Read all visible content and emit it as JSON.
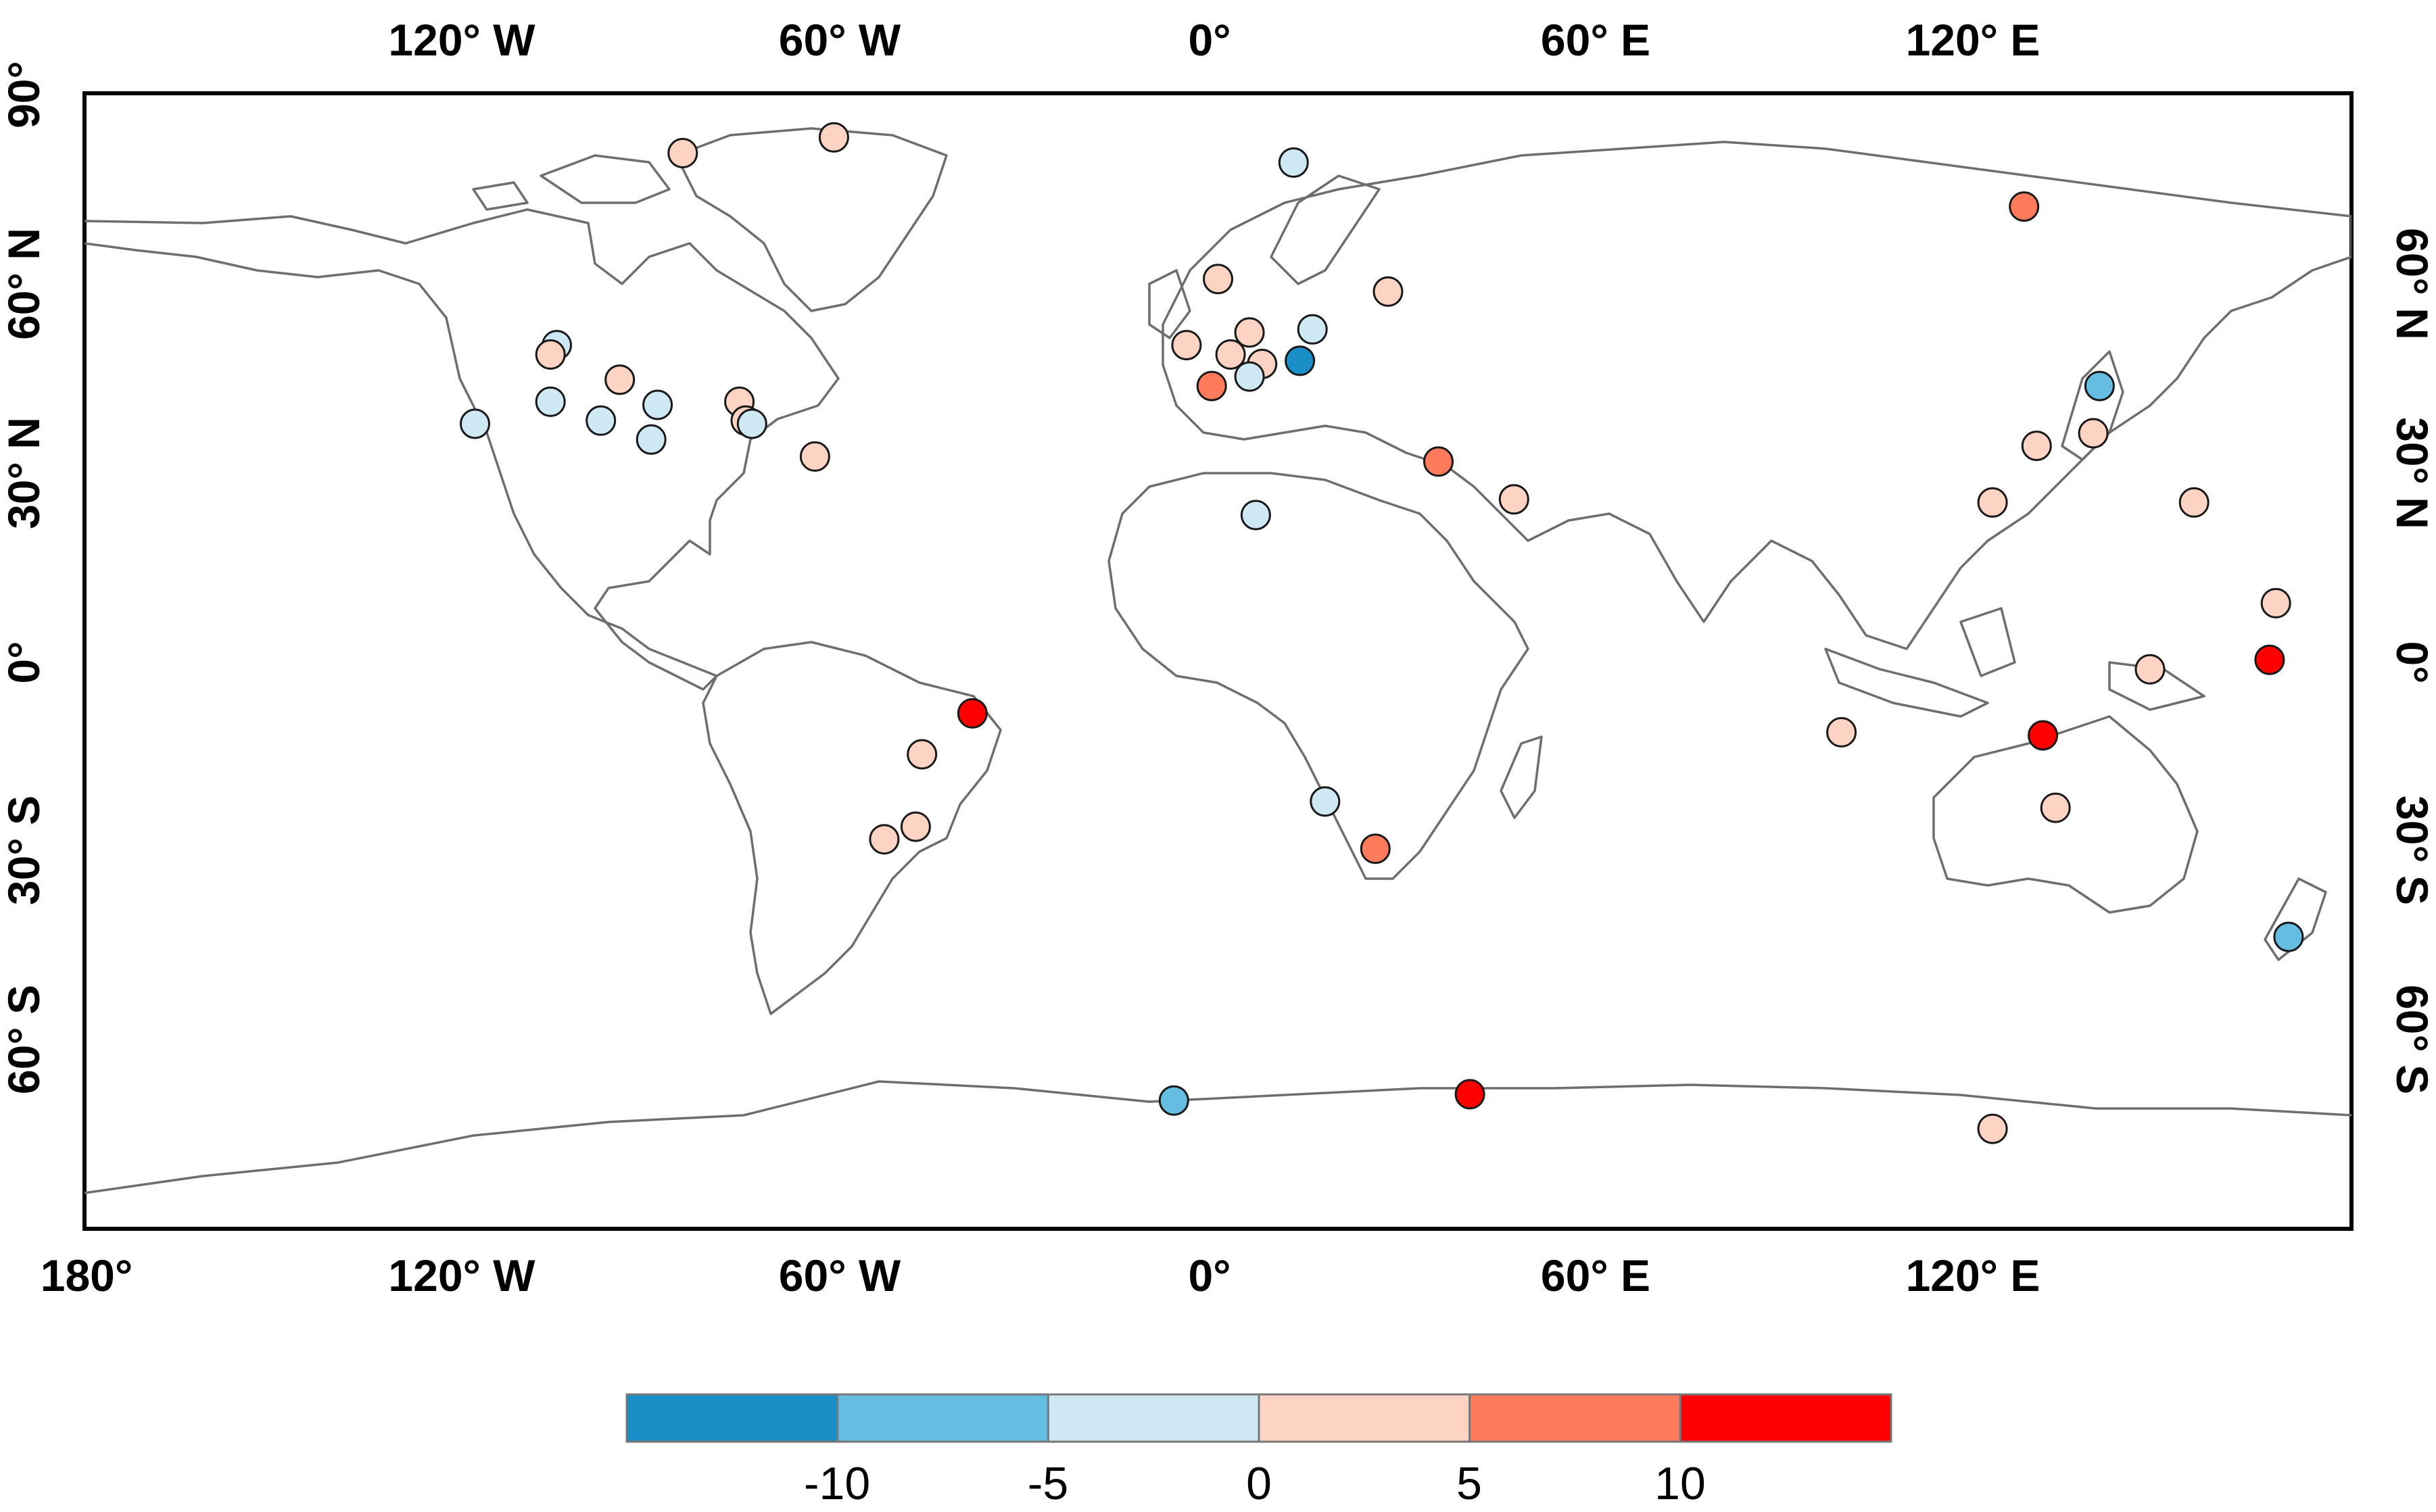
{
  "map": {
    "type": "scatter-map",
    "projection": "plate-carree",
    "lon_range": [
      -180,
      180
    ],
    "lat_range": [
      -90,
      90
    ],
    "x_axis_top_labels": [
      "120° W",
      "60° W",
      "0°",
      "60° E",
      "120° E"
    ],
    "x_axis_bottom_labels": [
      "180°",
      "120° W",
      "60° W",
      "0°",
      "60° E",
      "120° E"
    ],
    "y_axis_labels": [
      "90°",
      "60° N",
      "30° N",
      "0°",
      "30° S",
      "60° S"
    ],
    "y_axis_right_labels": [
      "60° N",
      "30° N",
      "0°",
      "30° S",
      "60° S"
    ]
  },
  "colorbar": {
    "colors": [
      "#1a8fc7",
      "#66bde2",
      "#cfe9f4",
      "#fdd3c3",
      "#ff7b5c",
      "#ff0000"
    ],
    "bounds": [
      -15,
      -10,
      -5,
      0,
      5,
      10,
      15
    ],
    "tick_labels": [
      "-10",
      "-5",
      "0",
      "5",
      "10"
    ]
  },
  "chart_data": {
    "type": "scatter",
    "x_label": "longitude",
    "y_label": "latitude",
    "points": [
      {
        "lon": -85,
        "lat": 80.5,
        "value": 3
      },
      {
        "lon": -61,
        "lat": 83,
        "value": 3
      },
      {
        "lon": 12,
        "lat": 79,
        "value": -2
      },
      {
        "lon": 128,
        "lat": 72,
        "value": 7
      },
      {
        "lon": 0,
        "lat": 60.5,
        "value": 3
      },
      {
        "lon": 27,
        "lat": 58.5,
        "value": 3
      },
      {
        "lon": -5,
        "lat": 50,
        "value": 3
      },
      {
        "lon": 2,
        "lat": 48.5,
        "value": 3
      },
      {
        "lon": 5,
        "lat": 52,
        "value": 3
      },
      {
        "lon": 7,
        "lat": 47,
        "value": 3
      },
      {
        "lon": 15,
        "lat": 52.5,
        "value": -2
      },
      {
        "lon": 13,
        "lat": 47.5,
        "value": -12
      },
      {
        "lon": 5,
        "lat": 45,
        "value": -2
      },
      {
        "lon": -1,
        "lat": 43.5,
        "value": 7
      },
      {
        "lon": 140,
        "lat": 43.5,
        "value": -7
      },
      {
        "lon": -105,
        "lat": 50,
        "value": -2
      },
      {
        "lon": -106,
        "lat": 48.5,
        "value": 3
      },
      {
        "lon": -95,
        "lat": 44.5,
        "value": 3
      },
      {
        "lon": -106,
        "lat": 41,
        "value": -2
      },
      {
        "lon": -118,
        "lat": 37.5,
        "value": -2
      },
      {
        "lon": -98,
        "lat": 38,
        "value": -2
      },
      {
        "lon": -89,
        "lat": 40.5,
        "value": -2
      },
      {
        "lon": -90,
        "lat": 35,
        "value": -2
      },
      {
        "lon": -76,
        "lat": 41,
        "value": 3
      },
      {
        "lon": -75,
        "lat": 38,
        "value": 3
      },
      {
        "lon": -74,
        "lat": 37.5,
        "value": -2
      },
      {
        "lon": -64,
        "lat": 32.3,
        "value": 3
      },
      {
        "lon": 35,
        "lat": 31.5,
        "value": 7
      },
      {
        "lon": 47,
        "lat": 25.5,
        "value": 3
      },
      {
        "lon": 6,
        "lat": 23,
        "value": -2
      },
      {
        "lon": 130,
        "lat": 34,
        "value": 3
      },
      {
        "lon": 139,
        "lat": 36,
        "value": 3
      },
      {
        "lon": 123,
        "lat": 25,
        "value": 3
      },
      {
        "lon": 155,
        "lat": 25,
        "value": 3
      },
      {
        "lon": 168,
        "lat": 9,
        "value": 3
      },
      {
        "lon": 167,
        "lat": 0,
        "value": 12
      },
      {
        "lon": 148,
        "lat": -1.5,
        "value": 3
      },
      {
        "lon": 99,
        "lat": -11.5,
        "value": 3
      },
      {
        "lon": 131,
        "lat": -12,
        "value": 12
      },
      {
        "lon": 133,
        "lat": -23.5,
        "value": 3
      },
      {
        "lon": -39,
        "lat": -8.5,
        "value": 12
      },
      {
        "lon": -47,
        "lat": -15,
        "value": 3
      },
      {
        "lon": -48,
        "lat": -26.5,
        "value": 3
      },
      {
        "lon": -53,
        "lat": -28.5,
        "value": 3
      },
      {
        "lon": 17,
        "lat": -22.5,
        "value": -2
      },
      {
        "lon": 25,
        "lat": -30,
        "value": 7
      },
      {
        "lon": 170,
        "lat": -44,
        "value": -7
      },
      {
        "lon": -7,
        "lat": -70,
        "value": -7
      },
      {
        "lon": 40,
        "lat": -69,
        "value": 12
      },
      {
        "lon": 123,
        "lat": -74.5,
        "value": 3
      }
    ]
  }
}
